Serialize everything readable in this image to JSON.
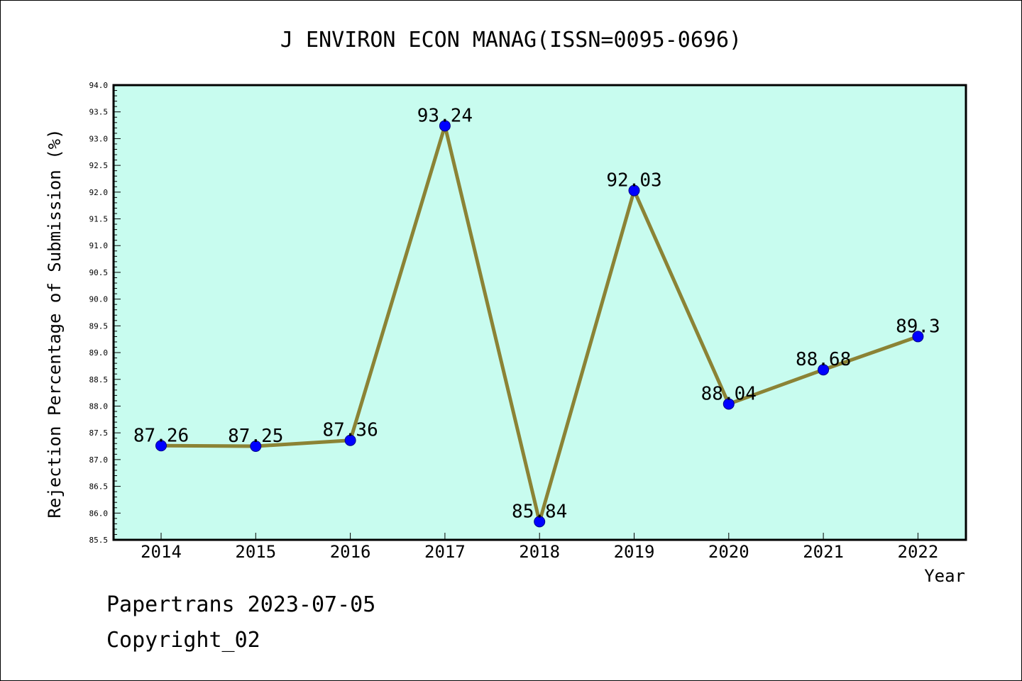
{
  "chart_data": {
    "type": "line",
    "title": "J ENVIRON ECON MANAG(ISSN=0095-0696)",
    "xlabel": "Year",
    "ylabel": "Rejection Percentage of Submission (%)",
    "categories": [
      "2014",
      "2015",
      "2016",
      "2017",
      "2018",
      "2019",
      "2020",
      "2021",
      "2022"
    ],
    "values": [
      87.26,
      87.25,
      87.36,
      93.24,
      85.84,
      92.03,
      88.04,
      88.68,
      89.3
    ],
    "data_labels": [
      "87.26",
      "87.25",
      "87.36",
      "93.24",
      "85.84",
      "92.03",
      "88.04",
      "88.68",
      "89.3"
    ],
    "ylim": [
      85.5,
      94.0
    ],
    "yticks": [
      "85.5",
      "86.0",
      "86.5",
      "87.0",
      "87.5",
      "88.0",
      "88.5",
      "89.0",
      "89.5",
      "90.0",
      "90.5",
      "91.0",
      "91.5",
      "92.0",
      "92.5",
      "93.0",
      "93.5",
      "94.0"
    ],
    "grid": false,
    "colors": {
      "plot_background": "#c8fcef",
      "line": "#8b8335",
      "marker": "#0000ff",
      "marker_edge": "#000088"
    }
  },
  "footer": {
    "line1": "Papertrans 2023-07-05",
    "line2": "Copyright_02"
  }
}
